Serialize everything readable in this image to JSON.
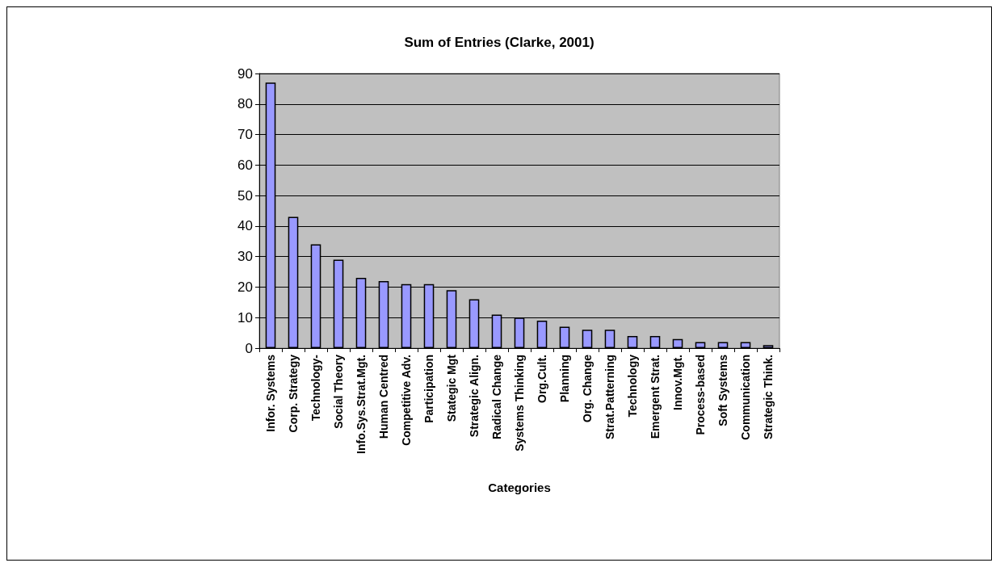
{
  "chart_data": {
    "type": "bar",
    "title": "Sum of Entries (Clarke, 2001)",
    "xlabel": "Categories",
    "categories": [
      "Infor. Systems",
      "Corp. Strategy",
      "Technology-",
      "Social Theory",
      "Info.Sys.Strat.Mgt.",
      "Human Centred",
      "Competitive Adv.",
      "Participation",
      "Stategic Mgt",
      "Strategic Align.",
      "Radical Change",
      "Systems Thinking",
      "Org.Cult.",
      "Planning",
      "Org. Change",
      "Strat.Patterning",
      "Technology",
      "Emergent Strat.",
      "Innov.Mgt.",
      "Process-based",
      "Soft Systems",
      "Communication",
      "Strategic Think."
    ],
    "values": [
      87,
      43,
      34,
      29,
      23,
      22,
      21,
      21,
      19,
      16,
      11,
      10,
      9,
      7,
      6,
      6,
      4,
      4,
      3,
      2,
      2,
      2,
      1
    ],
    "color": "#9999ff",
    "ylim": [
      0,
      90
    ],
    "yticks": [
      0,
      10,
      20,
      30,
      40,
      50,
      60,
      70,
      80,
      90
    ],
    "grid": "y"
  }
}
